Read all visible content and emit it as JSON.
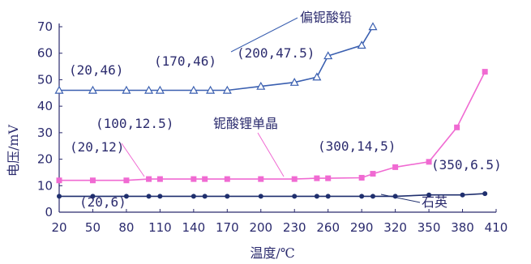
{
  "chart_data": {
    "type": "line",
    "xlabel": "温度/℃",
    "ylabel": "电压/mV",
    "xlim": [
      20,
      410
    ],
    "ylim": [
      0,
      70
    ],
    "x_ticks": [
      "20",
      "50",
      "80",
      "110",
      "140",
      "170",
      "200",
      "230",
      "260",
      "290",
      "320",
      "350",
      "380",
      "410"
    ],
    "y_ticks": [
      "0",
      "10",
      "20",
      "30",
      "40",
      "50",
      "60",
      "70"
    ],
    "grid": false,
    "colors": {
      "axis": "#2b2b6e",
      "偏铌酸铅": "#3a5fb0",
      "铌酸锂单晶": "#f06ad2",
      "石英": "#1f2f6e"
    },
    "series": [
      {
        "name": "偏铌酸铅",
        "marker": "triangle",
        "x": [
          20,
          50,
          80,
          100,
          110,
          140,
          155,
          170,
          200,
          230,
          250,
          260,
          290,
          300
        ],
        "y": [
          46,
          46,
          46,
          46,
          46,
          46,
          46,
          46,
          47.5,
          49,
          51,
          59,
          63,
          70
        ]
      },
      {
        "name": "铌酸锂单晶",
        "marker": "square",
        "x": [
          20,
          50,
          80,
          100,
          110,
          140,
          150,
          170,
          200,
          230,
          250,
          260,
          290,
          300,
          320,
          350,
          375,
          400
        ],
        "y": [
          12,
          12,
          12,
          12.5,
          12.5,
          12.5,
          12.5,
          12.5,
          12.5,
          12.5,
          12.8,
          12.8,
          13,
          14.5,
          17,
          19,
          32,
          53
        ]
      },
      {
        "name": "石英",
        "marker": "circle",
        "x": [
          20,
          50,
          80,
          100,
          110,
          140,
          150,
          170,
          200,
          230,
          250,
          260,
          290,
          300,
          320,
          350,
          380,
          400
        ],
        "y": [
          6,
          6,
          6,
          6,
          6,
          6,
          6,
          6,
          6,
          6,
          6,
          6,
          6,
          6,
          6,
          6.5,
          6.5,
          7
        ]
      }
    ],
    "annotations": [
      {
        "text": "(20,46)",
        "x": 20,
        "y": 46
      },
      {
        "text": "(170,46)",
        "x": 170,
        "y": 46
      },
      {
        "text": "(200,47.5)",
        "x": 200,
        "y": 47.5
      },
      {
        "text": "(100,12.5)",
        "x": 100,
        "y": 12.5
      },
      {
        "text": "(20,12)",
        "x": 20,
        "y": 12
      },
      {
        "text": "(300,14,5)",
        "x": 300,
        "y": 14.5
      },
      {
        "text": "(350,6.5)",
        "x": 350,
        "y": 6.5
      },
      {
        "text": "(20,6)",
        "x": 20,
        "y": 6
      }
    ]
  }
}
